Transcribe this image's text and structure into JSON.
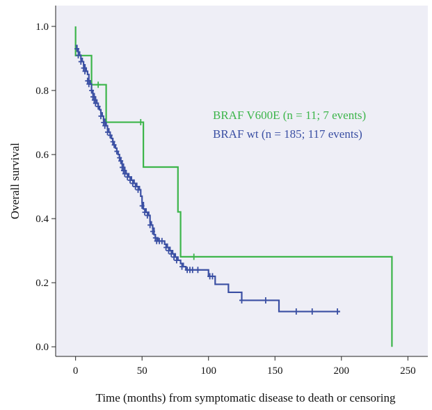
{
  "chart_data": {
    "type": "line",
    "style": "kaplan-meier step curves with censor tick marks",
    "xlabel": "Time (months) from symptomatic disease to death or censoring",
    "ylabel": "Overall survival",
    "xlim": [
      -15,
      265
    ],
    "ylim": [
      -0.03,
      1.065
    ],
    "xticks": [
      "0",
      "50",
      "100",
      "150",
      "200",
      "250"
    ],
    "yticks": [
      "0.0",
      "0.2",
      "0.4",
      "0.6",
      "0.8",
      "1.0"
    ],
    "grid": false,
    "background": "#eeeef6",
    "legend_position": "upper-right",
    "series": [
      {
        "name": "BRAF V600E (n = 11; 7 events)",
        "color": "#3cb54a",
        "steps": [
          [
            0,
            1.0
          ],
          [
            0,
            0.909
          ],
          [
            12,
            0.909
          ],
          [
            12,
            0.818
          ],
          [
            23,
            0.818
          ],
          [
            23,
            0.701
          ],
          [
            51,
            0.701
          ],
          [
            51,
            0.561
          ],
          [
            77,
            0.561
          ],
          [
            77,
            0.421
          ],
          [
            79,
            0.421
          ],
          [
            79,
            0.281
          ],
          [
            238,
            0.281
          ],
          [
            238,
            0.0
          ]
        ],
        "censored": [
          [
            17,
            0.818
          ],
          [
            49,
            0.701
          ],
          [
            89,
            0.281
          ]
        ]
      },
      {
        "name": "BRAF wt (n = 185; 117 events)",
        "color": "#3a4fa3",
        "steps": [
          [
            0,
            0.94
          ],
          [
            1,
            0.93
          ],
          [
            2,
            0.92
          ],
          [
            3,
            0.91
          ],
          [
            4,
            0.9
          ],
          [
            5,
            0.89
          ],
          [
            6,
            0.88
          ],
          [
            7,
            0.87
          ],
          [
            8,
            0.86
          ],
          [
            9,
            0.85
          ],
          [
            10,
            0.83
          ],
          [
            11,
            0.82
          ],
          [
            12,
            0.8
          ],
          [
            13,
            0.79
          ],
          [
            14,
            0.78
          ],
          [
            15,
            0.77
          ],
          [
            16,
            0.76
          ],
          [
            17,
            0.75
          ],
          [
            18,
            0.74
          ],
          [
            19,
            0.73
          ],
          [
            20,
            0.72
          ],
          [
            21,
            0.71
          ],
          [
            22,
            0.7
          ],
          [
            23,
            0.69
          ],
          [
            24,
            0.68
          ],
          [
            25,
            0.67
          ],
          [
            26,
            0.66
          ],
          [
            27,
            0.65
          ],
          [
            28,
            0.64
          ],
          [
            29,
            0.63
          ],
          [
            30,
            0.62
          ],
          [
            31,
            0.61
          ],
          [
            32,
            0.6
          ],
          [
            33,
            0.59
          ],
          [
            34,
            0.58
          ],
          [
            35,
            0.57
          ],
          [
            36,
            0.56
          ],
          [
            37,
            0.55
          ],
          [
            38,
            0.54
          ],
          [
            40,
            0.53
          ],
          [
            42,
            0.52
          ],
          [
            44,
            0.51
          ],
          [
            46,
            0.5
          ],
          [
            48,
            0.49
          ],
          [
            49,
            0.47
          ],
          [
            50,
            0.45
          ],
          [
            51,
            0.43
          ],
          [
            53,
            0.42
          ],
          [
            55,
            0.41
          ],
          [
            56,
            0.39
          ],
          [
            57,
            0.38
          ],
          [
            58,
            0.37
          ],
          [
            59,
            0.35
          ],
          [
            60,
            0.34
          ],
          [
            62,
            0.33
          ],
          [
            66,
            0.33
          ],
          [
            67,
            0.32
          ],
          [
            69,
            0.31
          ],
          [
            71,
            0.3
          ],
          [
            73,
            0.29
          ],
          [
            75,
            0.28
          ],
          [
            77,
            0.27
          ],
          [
            79,
            0.26
          ],
          [
            81,
            0.25
          ],
          [
            83,
            0.24
          ],
          [
            100,
            0.24
          ],
          [
            100,
            0.22
          ],
          [
            105,
            0.22
          ],
          [
            105,
            0.195
          ],
          [
            115,
            0.195
          ],
          [
            115,
            0.17
          ],
          [
            125,
            0.17
          ],
          [
            125,
            0.145
          ],
          [
            153,
            0.145
          ],
          [
            153,
            0.11
          ],
          [
            199,
            0.11
          ]
        ],
        "censored": [
          [
            1,
            0.93
          ],
          [
            2,
            0.91
          ],
          [
            4,
            0.89
          ],
          [
            6,
            0.87
          ],
          [
            7,
            0.86
          ],
          [
            9,
            0.83
          ],
          [
            10,
            0.82
          ],
          [
            12,
            0.8
          ],
          [
            13,
            0.78
          ],
          [
            14,
            0.77
          ],
          [
            15,
            0.76
          ],
          [
            17,
            0.75
          ],
          [
            19,
            0.72
          ],
          [
            21,
            0.7
          ],
          [
            22,
            0.69
          ],
          [
            24,
            0.67
          ],
          [
            26,
            0.66
          ],
          [
            28,
            0.64
          ],
          [
            29,
            0.63
          ],
          [
            31,
            0.61
          ],
          [
            33,
            0.59
          ],
          [
            34,
            0.58
          ],
          [
            35,
            0.56
          ],
          [
            36,
            0.55
          ],
          [
            37,
            0.54
          ],
          [
            39,
            0.53
          ],
          [
            41,
            0.52
          ],
          [
            43,
            0.51
          ],
          [
            45,
            0.5
          ],
          [
            47,
            0.49
          ],
          [
            50,
            0.44
          ],
          [
            52,
            0.42
          ],
          [
            54,
            0.41
          ],
          [
            56,
            0.38
          ],
          [
            58,
            0.36
          ],
          [
            60,
            0.34
          ],
          [
            61,
            0.33
          ],
          [
            63,
            0.33
          ],
          [
            65,
            0.33
          ],
          [
            68,
            0.31
          ],
          [
            70,
            0.3
          ],
          [
            72,
            0.29
          ],
          [
            74,
            0.28
          ],
          [
            76,
            0.27
          ],
          [
            80,
            0.25
          ],
          [
            84,
            0.24
          ],
          [
            86,
            0.24
          ],
          [
            88,
            0.24
          ],
          [
            92,
            0.24
          ],
          [
            101,
            0.22
          ],
          [
            103,
            0.22
          ],
          [
            125,
            0.145
          ],
          [
            143,
            0.145
          ],
          [
            166,
            0.11
          ],
          [
            178,
            0.11
          ],
          [
            197,
            0.11
          ]
        ]
      }
    ]
  }
}
